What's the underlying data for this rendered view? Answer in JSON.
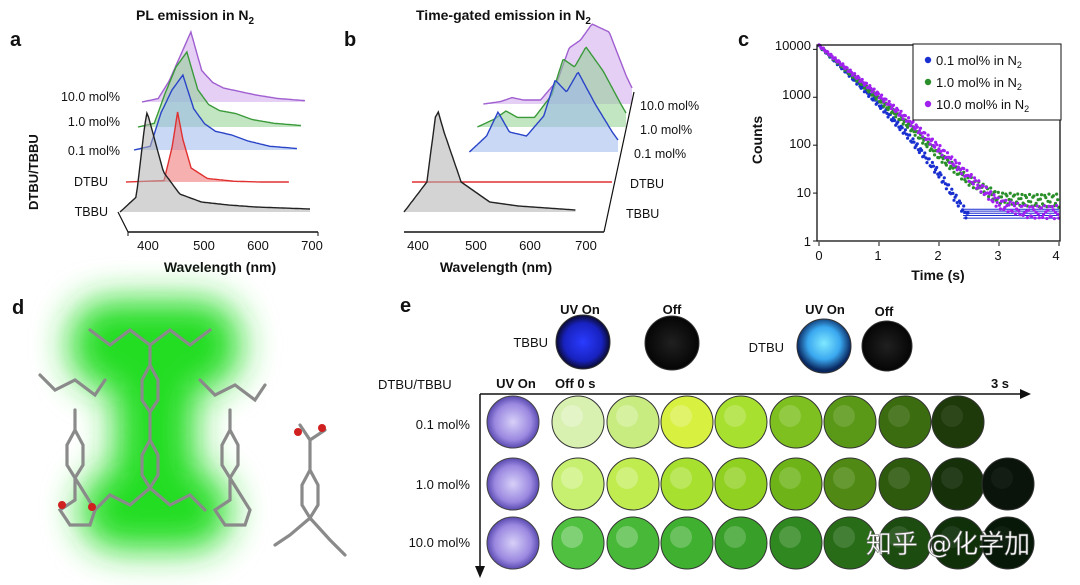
{
  "panels": {
    "a": {
      "letter": "a",
      "title": "PL emission in N",
      "title_sub": "2",
      "xlabel": "Wavelength (nm)",
      "ylabel": "DTBU/TBBU",
      "xticks": [
        "400",
        "500",
        "600",
        "700"
      ],
      "traces": [
        {
          "label": "10.0 mol%",
          "color": "#a05fd0"
        },
        {
          "label": "1.0 mol%",
          "color": "#3a9a3a"
        },
        {
          "label": "0.1 mol%",
          "color": "#2a44c8"
        },
        {
          "label": "DTBU",
          "color": "#e03030"
        },
        {
          "label": "TBBU",
          "color": "#222222"
        }
      ]
    },
    "b": {
      "letter": "b",
      "title": "Time-gated emission  in N",
      "title_sub": "2",
      "xlabel": "Wavelength (nm)",
      "xticks": [
        "400",
        "500",
        "600",
        "700"
      ],
      "traces": [
        {
          "label": "10.0 mol%",
          "color": "#a05fd0"
        },
        {
          "label": "1.0 mol%",
          "color": "#3a9a3a"
        },
        {
          "label": "0.1 mol%",
          "color": "#2a44c8"
        },
        {
          "label": "DTBU",
          "color": "#e03030"
        },
        {
          "label": "TBBU",
          "color": "#222222"
        }
      ]
    },
    "c": {
      "letter": "c",
      "xlabel": "Time (s)",
      "ylabel": "Counts",
      "xticks": [
        "0",
        "1",
        "2",
        "3",
        "4"
      ],
      "yticks": [
        "10000",
        "1000",
        "100",
        "10",
        "1"
      ],
      "legend": [
        {
          "label": "0.1 mol% in N",
          "sub": "2",
          "color": "#1a2fd0"
        },
        {
          "label": "1.0 mol% in N",
          "sub": "2",
          "color": "#2a8f2a"
        },
        {
          "label": "10.0 mol% in N",
          "sub": "2",
          "color": "#a020f0"
        }
      ]
    },
    "d": {
      "letter": "d"
    },
    "e": {
      "letter": "e",
      "uv_on": "UV On",
      "off": "Off",
      "tbbu": "TBBU",
      "dtbu": "DTBU",
      "rowhead": "DTBU/TBBU",
      "col_uv": "UV On",
      "col_off": "Off 0 s",
      "end_time": "3 s",
      "rows": [
        {
          "label": "0.1 mol%"
        },
        {
          "label": "1.0 mol%"
        },
        {
          "label": "10.0 mol%"
        }
      ]
    }
  },
  "watermark": "知乎 @化学加",
  "chart_data": [
    {
      "type": "line",
      "panel": "a",
      "title": "PL emission in N2",
      "xlabel": "Wavelength (nm)",
      "ylabel": "DTBU/TBBU",
      "xlim": [
        350,
        700
      ],
      "series": [
        {
          "name": "TBBU",
          "x": [
            350,
            380,
            395,
            400,
            410,
            430,
            460,
            500,
            550,
            600,
            650,
            700
          ],
          "values": [
            0,
            0.15,
            0.85,
            1.0,
            0.8,
            0.4,
            0.18,
            0.1,
            0.07,
            0.05,
            0.04,
            0.03
          ]
        },
        {
          "name": "DTBU",
          "x": [
            350,
            420,
            435,
            445,
            455,
            470,
            500,
            550,
            600,
            650
          ],
          "values": [
            0,
            0.02,
            0.5,
            1.0,
            0.6,
            0.2,
            0.05,
            0.01,
            0.0,
            0.0
          ]
        },
        {
          "name": "0.1 mol%",
          "x": [
            350,
            380,
            400,
            420,
            440,
            460,
            480,
            500,
            530,
            560,
            600,
            650
          ],
          "values": [
            0,
            0.05,
            0.5,
            0.8,
            1.0,
            0.55,
            0.35,
            0.25,
            0.2,
            0.12,
            0.05,
            0.02
          ]
        },
        {
          "name": "1.0 mol%",
          "x": [
            350,
            380,
            400,
            420,
            440,
            460,
            480,
            500,
            530,
            560,
            600,
            650
          ],
          "values": [
            0,
            0.05,
            0.45,
            0.8,
            1.0,
            0.5,
            0.3,
            0.22,
            0.18,
            0.1,
            0.05,
            0.02
          ]
        },
        {
          "name": "10.0 mol%",
          "x": [
            350,
            380,
            400,
            420,
            440,
            460,
            480,
            500,
            530,
            560,
            600,
            650
          ],
          "values": [
            0,
            0.05,
            0.3,
            0.65,
            1.0,
            0.45,
            0.28,
            0.2,
            0.15,
            0.1,
            0.05,
            0.02
          ]
        }
      ]
    },
    {
      "type": "line",
      "panel": "b",
      "title": "Time-gated emission in N2",
      "xlabel": "Wavelength (nm)",
      "xlim": [
        350,
        700
      ],
      "series": [
        {
          "name": "TBBU",
          "x": [
            350,
            390,
            405,
            410,
            420,
            450,
            500,
            550,
            600,
            650
          ],
          "values": [
            0,
            0.3,
            0.95,
            1.0,
            0.8,
            0.3,
            0.1,
            0.06,
            0.04,
            0.02
          ]
        },
        {
          "name": "DTBU",
          "x": [
            350,
            400,
            500,
            600,
            700
          ],
          "values": [
            0,
            0,
            0,
            0,
            0
          ]
        },
        {
          "name": "0.1 mol%",
          "x": [
            440,
            470,
            490,
            510,
            540,
            570,
            590,
            610,
            630,
            660,
            690,
            710
          ],
          "values": [
            0,
            0.2,
            0.5,
            0.25,
            0.2,
            0.45,
            0.9,
            0.75,
            1.0,
            0.6,
            0.25,
            0.05
          ]
        },
        {
          "name": "1.0 mol%",
          "x": [
            440,
            470,
            490,
            510,
            540,
            570,
            590,
            610,
            630,
            660,
            690,
            710
          ],
          "values": [
            0,
            0.1,
            0.2,
            0.12,
            0.12,
            0.4,
            0.85,
            0.75,
            1.0,
            0.7,
            0.3,
            0.05
          ]
        },
        {
          "name": "10.0 mol%",
          "x": [
            440,
            470,
            490,
            510,
            540,
            570,
            590,
            610,
            630,
            660,
            690,
            710
          ],
          "values": [
            0,
            0.03,
            0.08,
            0.05,
            0.05,
            0.3,
            0.7,
            0.8,
            1.0,
            0.9,
            0.35,
            0.05
          ]
        }
      ]
    },
    {
      "type": "scatter",
      "panel": "c",
      "xlabel": "Time (s)",
      "ylabel": "Counts",
      "yscale": "log",
      "xlim": [
        0,
        4
      ],
      "ylim": [
        1,
        10000
      ],
      "series": [
        {
          "name": "0.1 mol% in N2",
          "x": [
            0,
            0.5,
            1,
            1.5,
            2,
            2.5
          ],
          "values": [
            12000,
            3000,
            700,
            150,
            25,
            3
          ]
        },
        {
          "name": "1.0 mol% in N2",
          "x": [
            0,
            0.5,
            1,
            1.5,
            2,
            2.5,
            3,
            3.5,
            4
          ],
          "values": [
            12000,
            3300,
            900,
            250,
            60,
            18,
            8,
            7,
            7
          ]
        },
        {
          "name": "10.0 mol% in N2",
          "x": [
            0,
            0.5,
            1,
            1.5,
            2,
            2.5,
            3,
            3.5,
            4
          ],
          "values": [
            12000,
            3600,
            1100,
            320,
            85,
            22,
            6,
            4,
            4
          ]
        }
      ]
    }
  ]
}
